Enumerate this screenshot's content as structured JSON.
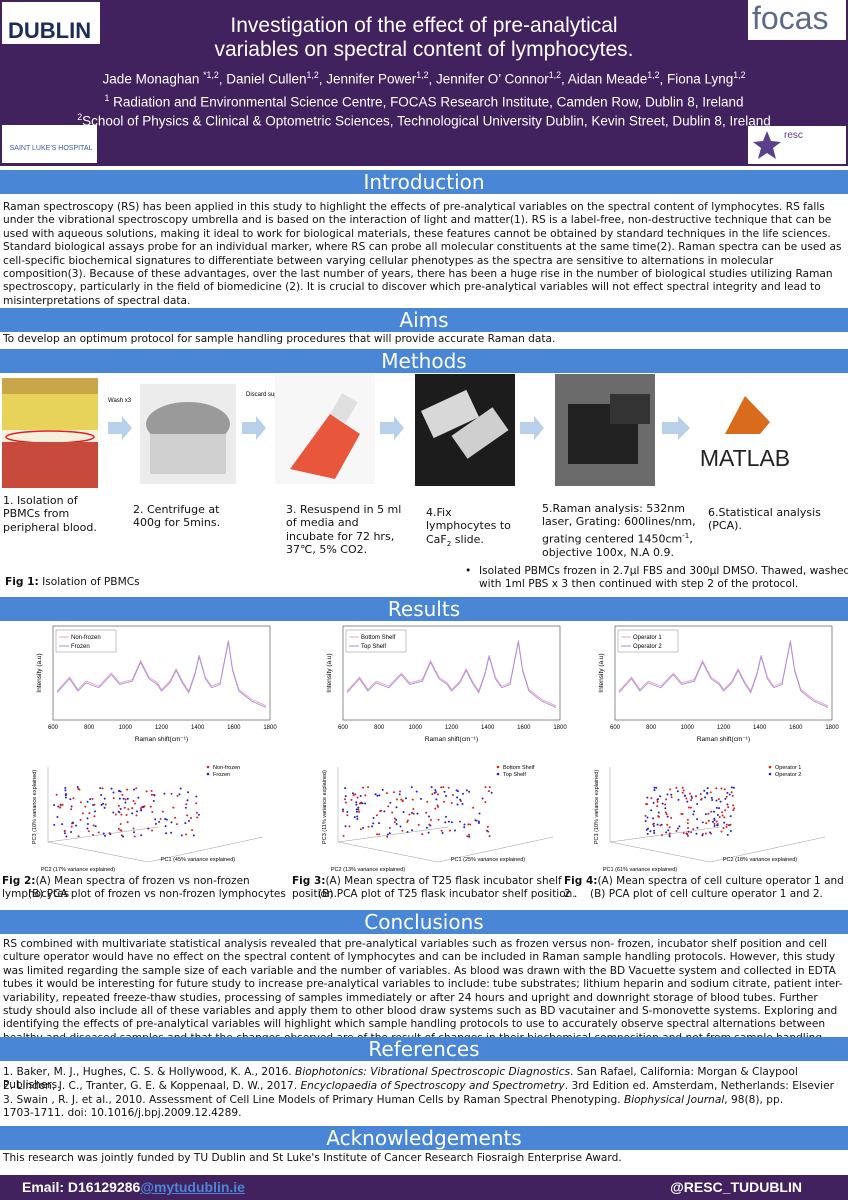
{
  "header": {
    "title_lines": [
      "Investigation of the effect of pre-analytical",
      "variables on spectral content of lymphocytes."
    ],
    "authors": [
      {
        "text": "Jade Monaghan "
      },
      {
        "sup": "*1,2"
      },
      {
        "text": ", Daniel Cullen"
      },
      {
        "sup": "1,2"
      },
      {
        "text": ", Jennifer Power"
      },
      {
        "sup": "1,2"
      },
      {
        "text": ", Jennifer O’ Connor"
      },
      {
        "sup": "1,2"
      },
      {
        "text": ", Aidan Meade"
      },
      {
        "sup": "1,2"
      },
      {
        "text": ", Fiona Lyng"
      },
      {
        "sup": "1,2"
      }
    ],
    "affiliation_1": [
      {
        "sup": "1"
      },
      {
        "text": " Radiation and Environmental Science Centre, FOCAS Research Institute, Camden Row, Dublin 8, Ireland"
      }
    ],
    "affiliation_2": [
      {
        "sup": "2"
      },
      {
        "text": "School of Physics & Clinical & Optometric Sciences, Technological University Dublin, Kevin Street, Dublin 8, Ireland"
      }
    ],
    "logos": {
      "tu": "DUBLIN",
      "focas": "focas",
      "resc": "resc",
      "st_lukes": "SAINT LUKE'S HOSPITAL"
    }
  },
  "introduction": {
    "heading": "Introduction",
    "text": "Raman spectroscopy (RS) has been applied in this study to highlight the effects of pre-analytical variables on the spectral content of lymphocytes. RS falls under the vibrational spectroscopy umbrella and is based on the interaction of light and matter(1). RS is a label-free, non-destructive technique that can be used with aqueous solutions, making it ideal to work for biological materials, these features cannot be obtained by standard techniques in the life sciences. Standard biological assays probe for an individual marker, where RS can probe all molecular constituents at the same time(2). Raman spectra can be used as cell-specific biochemical signatures to differentiate between varying cellular phenotypes as the spectra are sensitive to alternations in molecular composition(3). Because of these advantages, over the last number of years, there has been a huge rise in the number of biological studies utilizing Raman spectroscopy, particularly in the field of biomedicine (2). It is crucial to discover which pre-analytical variables will not effect spectral integrity and lead to misinterpretations of spectral data."
  },
  "aims": {
    "heading": "Aims",
    "text": "To develop an optimum protocol for sample handling procedures that will provide accurate Raman data."
  },
  "methods": {
    "heading": "Methods",
    "labels": {
      "wash": "Wash x3",
      "discard": "Discard supernatant",
      "matlab": "MATLAB"
    },
    "steps": [
      [
        {
          "text": "1. Isolation of PBMCs from peripheral blood."
        }
      ],
      [
        {
          "text": "2. Centrifuge at 400g for 5mins."
        }
      ],
      [
        {
          "text": "3. Resuspend in 5 ml of media and incubate for 72 hrs, 37℃, 5% CO2."
        }
      ],
      [
        {
          "text": "4.Fix lymphocytes to CaF"
        },
        {
          "sub": "2"
        },
        {
          "text": " slide."
        }
      ],
      [
        {
          "text": "5.Raman analysis: 532nm laser, Grating: 600lines/nm, grating centered 1450cm"
        },
        {
          "sup": "-1"
        },
        {
          "text": ", objective 100x, N.A 0.9."
        }
      ],
      [
        {
          "text": "6.Statistical analysis (PCA)."
        }
      ]
    ],
    "fig1": [
      {
        "b": "Fig 1:"
      },
      {
        "text": " Isolation of PBMCs"
      }
    ],
    "note": "Isolated PBMCs frozen in 2.7µl FBS and 300µl DMSO. Thawed, washed with 1ml PBS x 3 then continued with step 2 of the protocol."
  },
  "results": {
    "heading": "Results",
    "figures": [
      {
        "spectra_legend": [
          "Non-frozen",
          "Frozen"
        ],
        "pca_legend": [
          "Non-frozen",
          "Frozen"
        ],
        "pca_xlabel": "PC1 (45% variance explained)",
        "pca_ylabel": "PC3 (10% variance explained)",
        "pca_zlabel": "PC2 (17% variance explained)",
        "caption": [
          {
            "b": "Fig 2:"
          },
          {
            "text": "(A) Mean spectra of frozen vs non-frozen  lymphocytes"
          }
        ],
        "caption_b": "(B) PCA plot of frozen vs non-frozen lymphocytes"
      },
      {
        "spectra_legend": [
          "Bottom Shelf",
          "Top Shelf"
        ],
        "pca_legend": [
          "Bottom Shelf",
          "Top Shelf"
        ],
        "pca_xlabel": "PC1 (25% variance explained)",
        "pca_ylabel": "PC3 (11% variance explained)",
        "pca_zlabel": "PC2 (13% variance explained)",
        "caption": [
          {
            "b": "Fig 3:"
          },
          {
            "text": "(A) Mean spectra of T25 flask incubator shelf position."
          }
        ],
        "caption_b": "(B) PCA plot of T25 flask incubator shelf position."
      },
      {
        "spectra_legend": [
          "Operator 1",
          "Operator 2"
        ],
        "pca_legend": [
          "Operator 1",
          "Operator 2"
        ],
        "pca_xlabel": "PC2 (18% variance explained)",
        "pca_ylabel": "PC3 (10% variance explained)",
        "pca_zlabel": "PC1 (61% variance explained)",
        "caption": [
          {
            "b": "Fig 4:"
          },
          {
            "text": "(A) Mean spectra of cell culture operator 1 and 2 ."
          }
        ],
        "caption_b": "(B) PCA plot of cell culture operator 1 and 2."
      }
    ],
    "spectra_xticks": [
      "600",
      "800",
      "1000",
      "1200",
      "1400",
      "1600",
      "1800"
    ],
    "spectra_xlabel": "Raman shift(cm⁻¹)",
    "spectra_ylabel": "Intensity (a.u)"
  },
  "conclusions": {
    "heading": "Conclusions",
    "text": "RS combined with multivariate statistical analysis revealed that pre-analytical variables such as frozen versus non- frozen, incubator shelf position and cell culture operator would have no effect on the spectral content of lymphocytes and can be included in Raman sample handling protocols. However, this study was limited regarding the sample size of each variable and the number of variables. As blood was drawn with the BD Vacuette system and collected in EDTA tubes it would be interesting for future study to increase pre-analytical variables to include: tube substrates; lithium heparin and sodium citrate, patient inter-variability, repeated freeze-thaw studies, processing of samples immediately or after 24 hours and upright and downright storage of blood tubes. Further study should also include all of these variables and apply them to other blood draw systems such as BD vacutainer and S-monovette systems. Exploring and identifying the effects of pre-analytical variables will highlight which sample handling protocols to use to accurately observe spectral alternations between healthy and diseased samples and that the changes observed are of the result of changes in their biochemical composition and not from sample handling protocols."
  },
  "references": {
    "heading": "References",
    "items": [
      [
        {
          "text": "1.  Baker, M. J., Hughes, C. S. & Hollywood, K. A., 2016. "
        },
        {
          "i": "Biophotonics: Vibrational Spectroscopic Diagnostics"
        },
        {
          "text": ". San Rafael, California: Morgan & Claypool Publishers."
        }
      ],
      [
        {
          "text": "2.  Lindon, J. C., Tranter, G. E. & Koppenaal, D. W., 2017. "
        },
        {
          "i": "Encyclopaedia of Spectroscopy and Spectrometry"
        },
        {
          "text": ". 3rd Edition ed. Amsterdam, Netherlands: Elsevier"
        }
      ],
      [
        {
          "text": "3. Swain , R. J. et al., 2010. Assessment of Cell Line Models of Primary Human Cells by Raman Spectral Phenotyping. "
        },
        {
          "i": "Biophysical Journal"
        },
        {
          "text": ", 98(8), pp. 1703-1711. doi: 10.1016/j.bpj.2009.12.4289."
        }
      ]
    ]
  },
  "acknowledgements": {
    "heading": "Acknowledgements",
    "text": "This research was jointly funded by TU Dublin and St Luke's Institute of Cancer Research Fiosraigh Enterprise Award."
  },
  "footer": {
    "email": [
      {
        "text": "Email: D16129286"
      },
      {
        "link": "@mytudublin.ie"
      }
    ],
    "handle": "@RESC_TUDUBLIN"
  }
}
